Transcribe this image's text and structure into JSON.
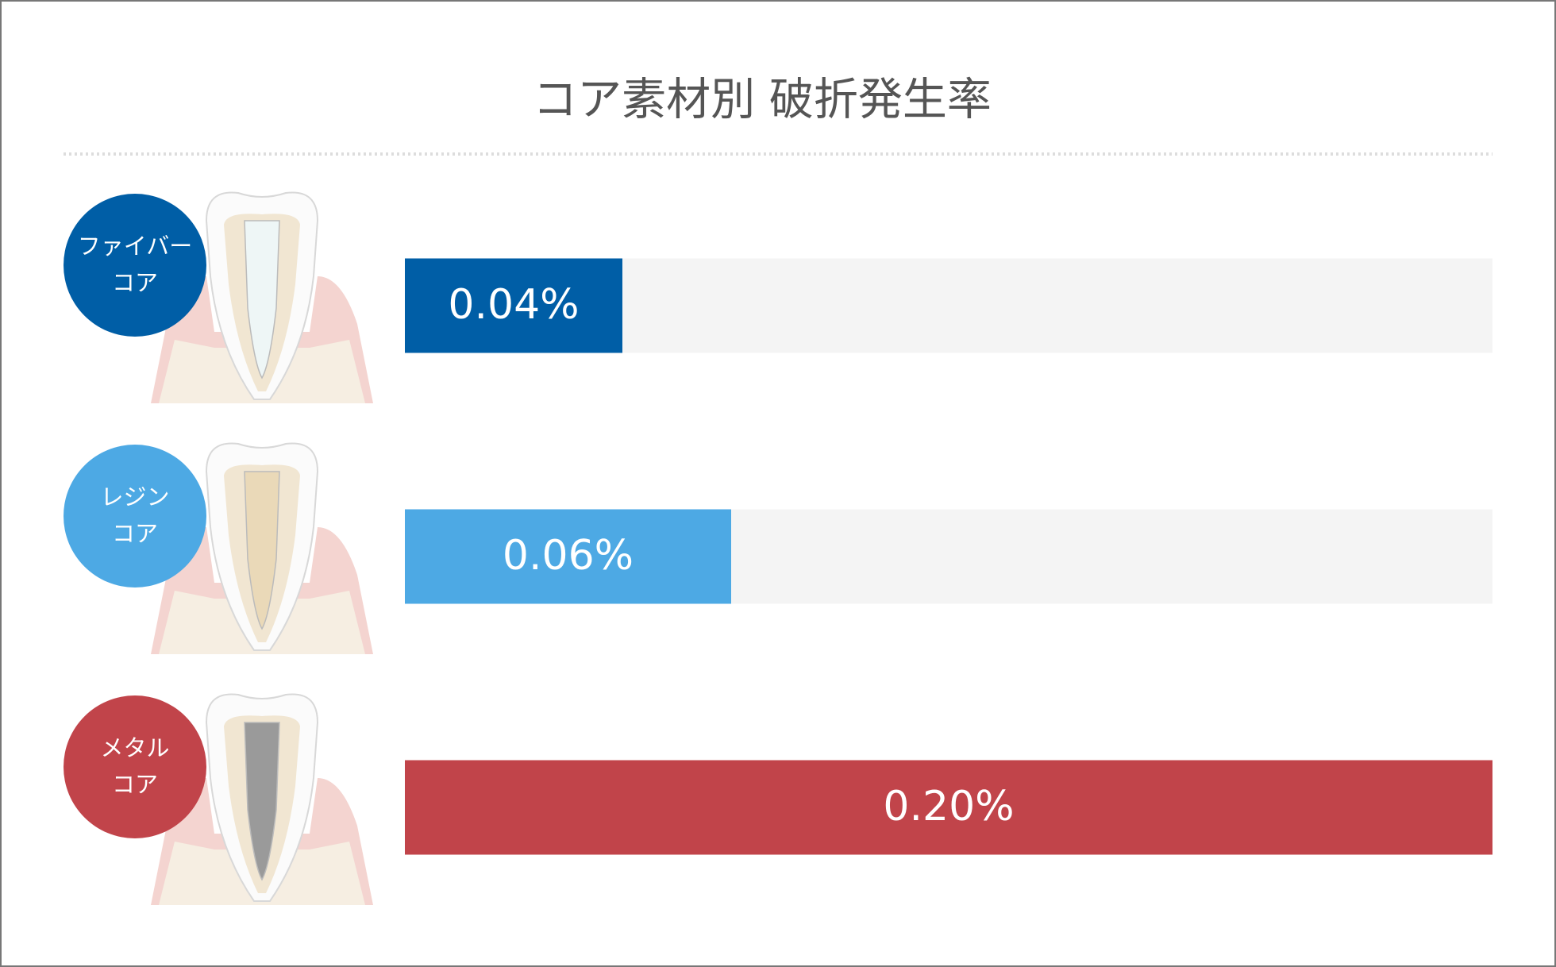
{
  "chart_data": {
    "type": "bar",
    "title": "コア素材別 破折発生率",
    "categories": [
      [
        "ファイバー",
        "コア"
      ],
      [
        "レジン",
        "コア"
      ],
      [
        "メタル",
        "コア"
      ]
    ],
    "values": [
      0.04,
      0.06,
      0.2
    ],
    "value_labels": [
      "0.04%",
      "0.06%",
      "0.20%"
    ],
    "colors": [
      "#005ea6",
      "#4da9e4",
      "#c1444a"
    ],
    "xlim": [
      0,
      0.2
    ]
  }
}
